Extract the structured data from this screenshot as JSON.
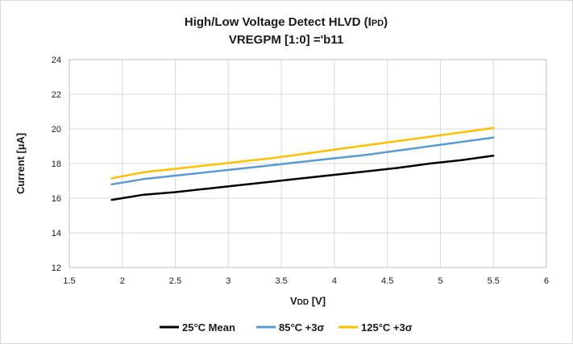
{
  "chart_data": {
    "type": "line",
    "title": "High/Low Voltage Detect HLVD (IPD)",
    "subtitle": "VREGPM [1:0] ='b11",
    "title_main": "High/Low Voltage Detect HLVD (I",
    "title_sub_letters": "PD",
    "title_close": ")",
    "xlabel": "VDD [V]",
    "xlabel_main": "V",
    "xlabel_sub": "DD",
    "xlabel_unit": " [V]",
    "ylabel": "Current [µA]",
    "xlim": [
      1.5,
      6
    ],
    "ylim": [
      12,
      24
    ],
    "x_ticks": [
      1.5,
      2,
      2.5,
      3,
      3.5,
      4,
      4.5,
      5,
      5.5,
      6
    ],
    "x_tick_labels": [
      "1.5",
      "2",
      "2.5",
      "3",
      "3.5",
      "4",
      "4.5",
      "5",
      "5.5",
      "6"
    ],
    "y_ticks": [
      12,
      14,
      16,
      18,
      20,
      22,
      24
    ],
    "y_tick_labels": [
      "12",
      "14",
      "16",
      "18",
      "20",
      "22",
      "24"
    ],
    "grid": true,
    "legend_position": "bottom",
    "x": [
      1.9,
      2.2,
      2.5,
      2.8,
      3.1,
      3.4,
      3.7,
      4.0,
      4.3,
      4.6,
      4.9,
      5.2,
      5.5
    ],
    "series": [
      {
        "name": "25°C Mean",
        "color": "#000000",
        "values": [
          15.9,
          16.2,
          16.35,
          16.55,
          16.75,
          16.95,
          17.15,
          17.35,
          17.55,
          17.75,
          18.0,
          18.2,
          18.45
        ]
      },
      {
        "name": "85°C +3σ",
        "color": "#5b9bd5",
        "values": [
          16.8,
          17.1,
          17.3,
          17.5,
          17.7,
          17.9,
          18.1,
          18.3,
          18.5,
          18.75,
          19.0,
          19.25,
          19.5
        ]
      },
      {
        "name": "125°C +3σ",
        "color": "#ffc000",
        "values": [
          17.15,
          17.5,
          17.7,
          17.9,
          18.1,
          18.3,
          18.55,
          18.8,
          19.05,
          19.3,
          19.55,
          19.8,
          20.05
        ]
      }
    ]
  }
}
